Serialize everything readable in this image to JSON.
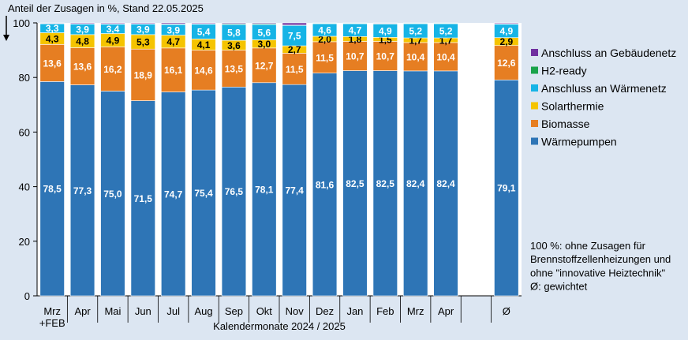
{
  "chart_data": {
    "type": "bar",
    "stacked": true,
    "title": "Anteil der Zusagen in %, Stand 22.05.2025",
    "xlabel": "Kalendermonate 2024 / 2025",
    "ylabel": "",
    "ylim": [
      0,
      100
    ],
    "yticks": [
      0,
      20,
      40,
      60,
      80,
      100
    ],
    "grid": false,
    "legend_position": "right",
    "categories": [
      "Mrz\n+FEB",
      "Apr",
      "Mai",
      "Jun",
      "Jul",
      "Aug",
      "Sep",
      "Okt",
      "Nov",
      "Dez",
      "Jan",
      "Feb",
      "Mrz",
      "Apr",
      "",
      "Ø"
    ],
    "series": [
      {
        "name": "Wärmepumpen",
        "color": "#2e75b6",
        "values": [
          78.5,
          77.3,
          75.0,
          71.5,
          74.7,
          75.4,
          76.5,
          78.1,
          77.4,
          81.6,
          82.5,
          82.5,
          82.4,
          82.4,
          null,
          79.1
        ],
        "labels": [
          "78,5",
          "77,3",
          "75,0",
          "71,5",
          "74,7",
          "75,4",
          "76,5",
          "78,1",
          "77,4",
          "81,6",
          "82,5",
          "82,5",
          "82,4",
          "82,4",
          "",
          "79,1"
        ]
      },
      {
        "name": "Biomasse",
        "color": "#e67e22",
        "values": [
          13.6,
          13.6,
          16.2,
          18.9,
          16.1,
          14.6,
          13.5,
          12.7,
          11.5,
          11.5,
          10.7,
          10.7,
          10.4,
          10.4,
          null,
          12.6
        ],
        "labels": [
          "13,6",
          "13,6",
          "16,2",
          "18,9",
          "16,1",
          "14,6",
          "13,5",
          "12,7",
          "11,5",
          "11,5",
          "10,7",
          "10,7",
          "10,4",
          "10,4",
          "",
          "12,6"
        ]
      },
      {
        "name": "Solarthermie",
        "color": "#f5c400",
        "values": [
          4.3,
          4.8,
          4.9,
          5.3,
          4.7,
          4.1,
          3.6,
          3.0,
          2.7,
          2.0,
          1.8,
          1.5,
          1.7,
          1.7,
          null,
          2.9
        ],
        "labels": [
          "4,3",
          "4,8",
          "4,9",
          "5,3",
          "4,7",
          "4,1",
          "3,6",
          "3,0",
          "2,7",
          "2,0",
          "1,8",
          "1,5",
          "1,7",
          "1,7",
          "",
          "2,9"
        ]
      },
      {
        "name": "Anschluss an Wärmenetz",
        "color": "#16b4e6",
        "values": [
          3.3,
          3.9,
          3.4,
          3.9,
          3.9,
          5.4,
          5.8,
          5.6,
          7.5,
          4.6,
          4.7,
          4.9,
          5.2,
          5.2,
          null,
          4.9
        ],
        "labels": [
          "3,3",
          "3,9",
          "3,4",
          "3,9",
          "3,9",
          "5,4",
          "5,8",
          "5,6",
          "7,5",
          "4,6",
          "4,7",
          "4,9",
          "5,2",
          "5,2",
          "",
          "4,9"
        ]
      },
      {
        "name": "H2-ready",
        "color": "#1aa34a",
        "values": [
          0.1,
          0.1,
          0.2,
          0.1,
          0.2,
          0.2,
          0.3,
          0.3,
          0.1,
          0.2,
          0.2,
          0.2,
          0.2,
          0.2,
          null,
          0.2
        ],
        "labels": []
      },
      {
        "name": "Anschluss an Gebäudenetz",
        "color": "#7030a0",
        "values": [
          0.2,
          0.3,
          0.3,
          0.3,
          0.4,
          0.3,
          0.3,
          0.3,
          0.8,
          0.1,
          0.1,
          0.2,
          0.1,
          0.1,
          null,
          0.3
        ],
        "labels": []
      }
    ],
    "legend_order": [
      "Anschluss an Gebäudenetz",
      "H2-ready",
      "Anschluss an Wärmenetz",
      "Solarthermie",
      "Biomasse",
      "Wärmepumpen"
    ],
    "footnote": [
      "100 %: ohne Zusagen für",
      "Brennstoffzellenheizungen und",
      "ohne \"innovative Heiztechnik\"",
      "Ø: gewichtet"
    ],
    "background_color": "#dce6f2",
    "plot_background_color": "#ffffff"
  }
}
